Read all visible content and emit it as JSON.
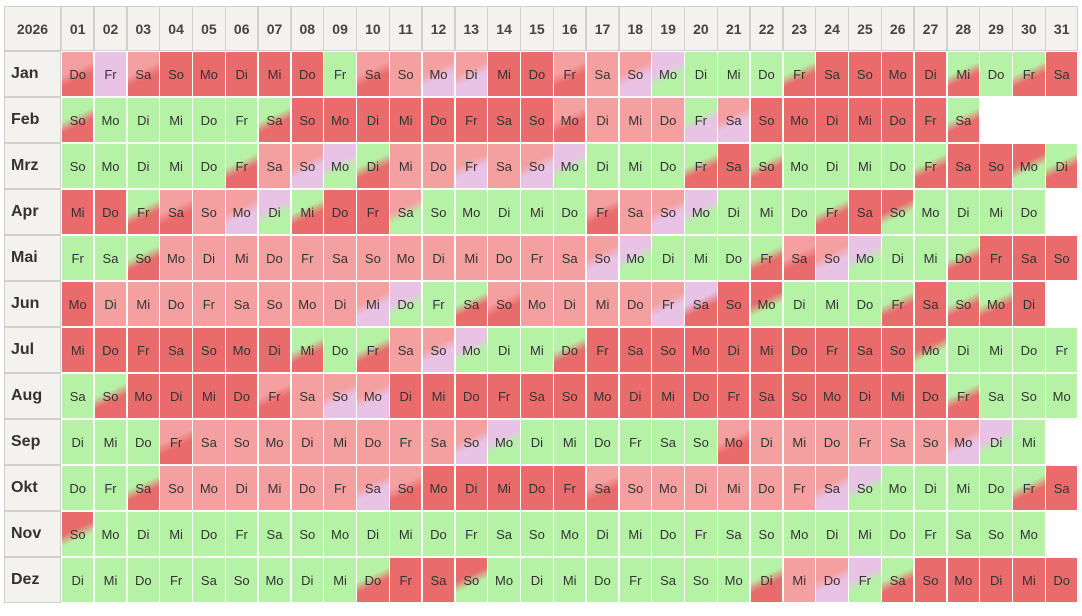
{
  "year": "2026",
  "day_headers": [
    "01",
    "02",
    "03",
    "04",
    "05",
    "06",
    "07",
    "08",
    "09",
    "10",
    "11",
    "12",
    "13",
    "14",
    "15",
    "16",
    "17",
    "18",
    "19",
    "20",
    "21",
    "22",
    "23",
    "24",
    "25",
    "26",
    "27",
    "28",
    "29",
    "30",
    "31"
  ],
  "colors": {
    "green": "#b5f2a6",
    "light_red": "#f4a0a0",
    "red": "#ea6b6b",
    "purple": "#e8c3e6"
  },
  "months": [
    {
      "name": "Jan",
      "days": [
        [
          "Do",
          "r/R"
        ],
        [
          "Fr",
          "P"
        ],
        [
          "Sa",
          "r/R"
        ],
        [
          "So",
          "R"
        ],
        [
          "Mo",
          "R"
        ],
        [
          "Di",
          "R"
        ],
        [
          "Mi",
          "R"
        ],
        [
          "Do",
          "R"
        ],
        [
          "Fr",
          "g/G"
        ],
        [
          "Sa",
          "r/R"
        ],
        [
          "So",
          "r"
        ],
        [
          "Mo",
          "r/P"
        ],
        [
          "Di",
          "r/P"
        ],
        [
          "Mi",
          "R"
        ],
        [
          "Do",
          "R"
        ],
        [
          "Fr",
          "r/R"
        ],
        [
          "Sa",
          "r"
        ],
        [
          "So",
          "r/P"
        ],
        [
          "Mo",
          "p/G"
        ],
        [
          "Di",
          "g"
        ],
        [
          "Mi",
          "g"
        ],
        [
          "Do",
          "g"
        ],
        [
          "Fr",
          "g/R"
        ],
        [
          "Sa",
          "R"
        ],
        [
          "So",
          "R"
        ],
        [
          "Mo",
          "R"
        ],
        [
          "Di",
          "R"
        ],
        [
          "Mi",
          "g/R"
        ],
        [
          "Do",
          "g"
        ],
        [
          "Fr",
          "g/R"
        ],
        [
          "Sa",
          "R"
        ]
      ]
    },
    {
      "name": "Feb",
      "days": [
        [
          "So",
          "g/R"
        ],
        [
          "Mo",
          "g"
        ],
        [
          "Di",
          "g"
        ],
        [
          "Mi",
          "g"
        ],
        [
          "Do",
          "g"
        ],
        [
          "Fr",
          "g"
        ],
        [
          "Sa",
          "g/R"
        ],
        [
          "So",
          "R"
        ],
        [
          "Mo",
          "R"
        ],
        [
          "Di",
          "R"
        ],
        [
          "Mi",
          "R"
        ],
        [
          "Do",
          "R"
        ],
        [
          "Fr",
          "R"
        ],
        [
          "Sa",
          "R"
        ],
        [
          "So",
          "R"
        ],
        [
          "Mo",
          "r/R"
        ],
        [
          "Di",
          "r"
        ],
        [
          "Mi",
          "r"
        ],
        [
          "Do",
          "r"
        ],
        [
          "Fr",
          "g/P"
        ],
        [
          "Sa",
          "r/P"
        ],
        [
          "So",
          "R"
        ],
        [
          "Mo",
          "R"
        ],
        [
          "Di",
          "R"
        ],
        [
          "Mi",
          "R"
        ],
        [
          "Do",
          "R"
        ],
        [
          "Fr",
          "R"
        ],
        [
          "Sa",
          "g/R"
        ]
      ]
    },
    {
      "name": "Mrz",
      "days": [
        [
          "So",
          "g"
        ],
        [
          "Mo",
          "g"
        ],
        [
          "Di",
          "g"
        ],
        [
          "Mi",
          "g"
        ],
        [
          "Do",
          "g"
        ],
        [
          "Fr",
          "g/R"
        ],
        [
          "Sa",
          "r"
        ],
        [
          "So",
          "r/P"
        ],
        [
          "Mo",
          "p/G"
        ],
        [
          "Di",
          "g/R"
        ],
        [
          "Mi",
          "r"
        ],
        [
          "Do",
          "r"
        ],
        [
          "Fr",
          "r/P"
        ],
        [
          "Sa",
          "r"
        ],
        [
          "So",
          "r/P"
        ],
        [
          "Mo",
          "p/G"
        ],
        [
          "Di",
          "g"
        ],
        [
          "Mi",
          "g"
        ],
        [
          "Do",
          "g"
        ],
        [
          "Fr",
          "g/R"
        ],
        [
          "Sa",
          "R"
        ],
        [
          "So",
          "g/R"
        ],
        [
          "Mo",
          "g"
        ],
        [
          "Di",
          "g"
        ],
        [
          "Mi",
          "g"
        ],
        [
          "Do",
          "g"
        ],
        [
          "Fr",
          "g/R"
        ],
        [
          "Sa",
          "R"
        ],
        [
          "So",
          "R"
        ],
        [
          "Mo",
          "R/G"
        ],
        [
          "Di",
          "g/R"
        ]
      ]
    },
    {
      "name": "Apr",
      "days": [
        [
          "Mi",
          "R"
        ],
        [
          "Do",
          "R"
        ],
        [
          "Fr",
          "g/R"
        ],
        [
          "Sa",
          "r/R"
        ],
        [
          "So",
          "r"
        ],
        [
          "Mo",
          "r/P"
        ],
        [
          "Di",
          "p/G"
        ],
        [
          "Mi",
          "g/R"
        ],
        [
          "Do",
          "R"
        ],
        [
          "Fr",
          "R"
        ],
        [
          "Sa",
          "r/G"
        ],
        [
          "So",
          "g"
        ],
        [
          "Mo",
          "g"
        ],
        [
          "Di",
          "g"
        ],
        [
          "Mi",
          "g"
        ],
        [
          "Do",
          "g"
        ],
        [
          "Fr",
          "r/R"
        ],
        [
          "Sa",
          "r"
        ],
        [
          "So",
          "r/P"
        ],
        [
          "Mo",
          "p/G"
        ],
        [
          "Di",
          "g"
        ],
        [
          "Mi",
          "g"
        ],
        [
          "Do",
          "g"
        ],
        [
          "Fr",
          "g/R"
        ],
        [
          "Sa",
          "R"
        ],
        [
          "So",
          "R/G"
        ],
        [
          "Mo",
          "g"
        ],
        [
          "Di",
          "g"
        ],
        [
          "Mi",
          "g"
        ],
        [
          "Do",
          "g"
        ]
      ]
    },
    {
      "name": "Mai",
      "days": [
        [
          "Fr",
          "g"
        ],
        [
          "Sa",
          "g"
        ],
        [
          "So",
          "g/R"
        ],
        [
          "Mo",
          "r"
        ],
        [
          "Di",
          "r"
        ],
        [
          "Mi",
          "r"
        ],
        [
          "Do",
          "r"
        ],
        [
          "Fr",
          "r"
        ],
        [
          "Sa",
          "r"
        ],
        [
          "So",
          "r"
        ],
        [
          "Mo",
          "r"
        ],
        [
          "Di",
          "r"
        ],
        [
          "Mi",
          "r"
        ],
        [
          "Do",
          "r"
        ],
        [
          "Fr",
          "r"
        ],
        [
          "Sa",
          "r"
        ],
        [
          "So",
          "r/P"
        ],
        [
          "Mo",
          "p/G"
        ],
        [
          "Di",
          "g"
        ],
        [
          "Mi",
          "g"
        ],
        [
          "Do",
          "g"
        ],
        [
          "Fr",
          "g/R"
        ],
        [
          "Sa",
          "r/R"
        ],
        [
          "So",
          "r/P"
        ],
        [
          "Mo",
          "p/G"
        ],
        [
          "Di",
          "g"
        ],
        [
          "Mi",
          "g"
        ],
        [
          "Do",
          "g/R"
        ],
        [
          "Fr",
          "R"
        ],
        [
          "Sa",
          "R"
        ],
        [
          "So",
          "R"
        ]
      ]
    },
    {
      "name": "Jun",
      "days": [
        [
          "Mo",
          "R"
        ],
        [
          "Di",
          "r"
        ],
        [
          "Mi",
          "r"
        ],
        [
          "Do",
          "r"
        ],
        [
          "Fr",
          "r"
        ],
        [
          "Sa",
          "r"
        ],
        [
          "So",
          "r"
        ],
        [
          "Mo",
          "r"
        ],
        [
          "Di",
          "r"
        ],
        [
          "Mi",
          "r/P"
        ],
        [
          "Do",
          "p/G"
        ],
        [
          "Fr",
          "g"
        ],
        [
          "Sa",
          "g/R"
        ],
        [
          "So",
          "r/R"
        ],
        [
          "Mo",
          "r"
        ],
        [
          "Di",
          "r"
        ],
        [
          "Mi",
          "r"
        ],
        [
          "Do",
          "r"
        ],
        [
          "Fr",
          "r/P"
        ],
        [
          "Sa",
          "p/R"
        ],
        [
          "So",
          "R"
        ],
        [
          "Mo",
          "R/G"
        ],
        [
          "Di",
          "g"
        ],
        [
          "Mi",
          "g"
        ],
        [
          "Do",
          "g"
        ],
        [
          "Fr",
          "g/R"
        ],
        [
          "Sa",
          "R"
        ],
        [
          "So",
          "g/R"
        ],
        [
          "Mo",
          "g/R"
        ],
        [
          "Di",
          "R"
        ]
      ]
    },
    {
      "name": "Jul",
      "days": [
        [
          "Mi",
          "R"
        ],
        [
          "Do",
          "R"
        ],
        [
          "Fr",
          "R"
        ],
        [
          "Sa",
          "R"
        ],
        [
          "So",
          "R"
        ],
        [
          "Mo",
          "R"
        ],
        [
          "Di",
          "R"
        ],
        [
          "Mi",
          "g/R"
        ],
        [
          "Do",
          "g"
        ],
        [
          "Fr",
          "g/R"
        ],
        [
          "Sa",
          "r"
        ],
        [
          "So",
          "r/P"
        ],
        [
          "Mo",
          "p/G"
        ],
        [
          "Di",
          "g"
        ],
        [
          "Mi",
          "g"
        ],
        [
          "Do",
          "g/R"
        ],
        [
          "Fr",
          "R"
        ],
        [
          "Sa",
          "R"
        ],
        [
          "So",
          "R"
        ],
        [
          "Mo",
          "R"
        ],
        [
          "Di",
          "R"
        ],
        [
          "Mi",
          "R"
        ],
        [
          "Do",
          "R"
        ],
        [
          "Fr",
          "R"
        ],
        [
          "Sa",
          "R"
        ],
        [
          "So",
          "R"
        ],
        [
          "Mo",
          "R/G"
        ],
        [
          "Di",
          "g"
        ],
        [
          "Mi",
          "g"
        ],
        [
          "Do",
          "g"
        ],
        [
          "Fr",
          "g"
        ]
      ]
    },
    {
      "name": "Aug",
      "days": [
        [
          "Sa",
          "g"
        ],
        [
          "So",
          "g/R"
        ],
        [
          "Mo",
          "R"
        ],
        [
          "Di",
          "R"
        ],
        [
          "Mi",
          "R"
        ],
        [
          "Do",
          "R"
        ],
        [
          "Fr",
          "r/R"
        ],
        [
          "Sa",
          "r"
        ],
        [
          "So",
          "r/P"
        ],
        [
          "Mo",
          "r/P"
        ],
        [
          "Di",
          "R"
        ],
        [
          "Mi",
          "R"
        ],
        [
          "Do",
          "R"
        ],
        [
          "Fr",
          "R"
        ],
        [
          "Sa",
          "R"
        ],
        [
          "So",
          "R"
        ],
        [
          "Mo",
          "R"
        ],
        [
          "Di",
          "R"
        ],
        [
          "Mi",
          "R"
        ],
        [
          "Do",
          "R"
        ],
        [
          "Fr",
          "R"
        ],
        [
          "Sa",
          "R"
        ],
        [
          "So",
          "R"
        ],
        [
          "Mo",
          "R"
        ],
        [
          "Di",
          "R"
        ],
        [
          "Mi",
          "R"
        ],
        [
          "Do",
          "R"
        ],
        [
          "Fr",
          "g/R"
        ],
        [
          "Sa",
          "g"
        ],
        [
          "So",
          "g"
        ],
        [
          "Mo",
          "g"
        ]
      ]
    },
    {
      "name": "Sep",
      "days": [
        [
          "Di",
          "g"
        ],
        [
          "Mi",
          "g"
        ],
        [
          "Do",
          "g"
        ],
        [
          "Fr",
          "r/R"
        ],
        [
          "Sa",
          "r"
        ],
        [
          "So",
          "r"
        ],
        [
          "Mo",
          "r"
        ],
        [
          "Di",
          "r"
        ],
        [
          "Mi",
          "r"
        ],
        [
          "Do",
          "r"
        ],
        [
          "Fr",
          "r"
        ],
        [
          "Sa",
          "r"
        ],
        [
          "So",
          "r/P"
        ],
        [
          "Mo",
          "p/G"
        ],
        [
          "Di",
          "g"
        ],
        [
          "Mi",
          "g"
        ],
        [
          "Do",
          "g"
        ],
        [
          "Fr",
          "g"
        ],
        [
          "Sa",
          "g"
        ],
        [
          "So",
          "g"
        ],
        [
          "Mo",
          "r/R"
        ],
        [
          "Di",
          "r"
        ],
        [
          "Mi",
          "r"
        ],
        [
          "Do",
          "r"
        ],
        [
          "Fr",
          "r"
        ],
        [
          "Sa",
          "r"
        ],
        [
          "So",
          "r"
        ],
        [
          "Mo",
          "r/P"
        ],
        [
          "Di",
          "p/G"
        ],
        [
          "Mi",
          "g"
        ]
      ]
    },
    {
      "name": "Okt",
      "days": [
        [
          "Do",
          "g"
        ],
        [
          "Fr",
          "g"
        ],
        [
          "Sa",
          "g/R"
        ],
        [
          "So",
          "r"
        ],
        [
          "Mo",
          "r"
        ],
        [
          "Di",
          "r"
        ],
        [
          "Mi",
          "r"
        ],
        [
          "Do",
          "r"
        ],
        [
          "Fr",
          "r"
        ],
        [
          "Sa",
          "r/P"
        ],
        [
          "So",
          "r/R"
        ],
        [
          "Mo",
          "R"
        ],
        [
          "Di",
          "R"
        ],
        [
          "Mi",
          "R"
        ],
        [
          "Do",
          "R"
        ],
        [
          "Fr",
          "R"
        ],
        [
          "Sa",
          "r/R"
        ],
        [
          "So",
          "r"
        ],
        [
          "Mo",
          "r"
        ],
        [
          "Di",
          "r"
        ],
        [
          "Mi",
          "r"
        ],
        [
          "Do",
          "r"
        ],
        [
          "Fr",
          "r"
        ],
        [
          "Sa",
          "r/P"
        ],
        [
          "So",
          "p/G"
        ],
        [
          "Mo",
          "g"
        ],
        [
          "Di",
          "g"
        ],
        [
          "Mi",
          "g"
        ],
        [
          "Do",
          "g"
        ],
        [
          "Fr",
          "g/R"
        ],
        [
          "Sa",
          "R"
        ]
      ]
    },
    {
      "name": "Nov",
      "days": [
        [
          "So",
          "R/G"
        ],
        [
          "Mo",
          "g"
        ],
        [
          "Di",
          "g"
        ],
        [
          "Mi",
          "g"
        ],
        [
          "Do",
          "g"
        ],
        [
          "Fr",
          "g"
        ],
        [
          "Sa",
          "g"
        ],
        [
          "So",
          "g"
        ],
        [
          "Mo",
          "g"
        ],
        [
          "Di",
          "g"
        ],
        [
          "Mi",
          "g"
        ],
        [
          "Do",
          "g"
        ],
        [
          "Fr",
          "g"
        ],
        [
          "Sa",
          "g"
        ],
        [
          "So",
          "g"
        ],
        [
          "Mo",
          "g"
        ],
        [
          "Di",
          "g"
        ],
        [
          "Mi",
          "g"
        ],
        [
          "Do",
          "g"
        ],
        [
          "Fr",
          "g"
        ],
        [
          "Sa",
          "g"
        ],
        [
          "So",
          "g"
        ],
        [
          "Mo",
          "g"
        ],
        [
          "Di",
          "g"
        ],
        [
          "Mi",
          "g"
        ],
        [
          "Do",
          "g"
        ],
        [
          "Fr",
          "g"
        ],
        [
          "Sa",
          "g"
        ],
        [
          "So",
          "g"
        ],
        [
          "Mo",
          "g"
        ]
      ]
    },
    {
      "name": "Dez",
      "days": [
        [
          "Di",
          "g"
        ],
        [
          "Mi",
          "g"
        ],
        [
          "Do",
          "g"
        ],
        [
          "Fr",
          "g"
        ],
        [
          "Sa",
          "g"
        ],
        [
          "So",
          "g"
        ],
        [
          "Mo",
          "g"
        ],
        [
          "Di",
          "g"
        ],
        [
          "Mi",
          "g"
        ],
        [
          "Do",
          "g/R"
        ],
        [
          "Fr",
          "R"
        ],
        [
          "Sa",
          "R"
        ],
        [
          "So",
          "R/G"
        ],
        [
          "Mo",
          "g"
        ],
        [
          "Di",
          "g"
        ],
        [
          "Mi",
          "g"
        ],
        [
          "Do",
          "g"
        ],
        [
          "Fr",
          "g"
        ],
        [
          "Sa",
          "g"
        ],
        [
          "So",
          "g"
        ],
        [
          "Mo",
          "g"
        ],
        [
          "Di",
          "g/R"
        ],
        [
          "Mi",
          "r"
        ],
        [
          "Do",
          "r/P"
        ],
        [
          "Fr",
          "p/G"
        ],
        [
          "Sa",
          "g/R"
        ],
        [
          "So",
          "R"
        ],
        [
          "Mo",
          "R"
        ],
        [
          "Di",
          "R"
        ],
        [
          "Mi",
          "R"
        ],
        [
          "Do",
          "R"
        ]
      ]
    }
  ]
}
